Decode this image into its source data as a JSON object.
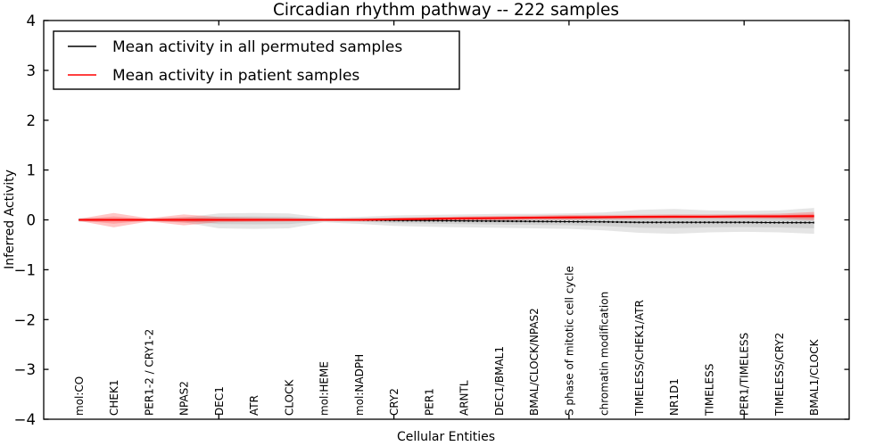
{
  "figure": {
    "background": "#ffffff"
  },
  "chart_data": {
    "type": "line",
    "title": "Circadian rhythm pathway -- 222 samples",
    "xlabel": "Cellular Entities",
    "ylabel": "Inferred Activity",
    "xlim": [
      0,
      23
    ],
    "ylim": [
      -4,
      4
    ],
    "grid": false,
    "yticks": [
      {
        "value": -4,
        "label": "−4"
      },
      {
        "value": -3,
        "label": "−3"
      },
      {
        "value": -2,
        "label": "−2"
      },
      {
        "value": -1,
        "label": "−1"
      },
      {
        "value": 0,
        "label": "0"
      },
      {
        "value": 1,
        "label": "1"
      },
      {
        "value": 2,
        "label": "2"
      },
      {
        "value": 3,
        "label": "3"
      },
      {
        "value": 4,
        "label": "4"
      }
    ],
    "xtick_positions": [
      5,
      10,
      15,
      20
    ],
    "categories": [
      "mol:CO",
      "CHEK1",
      "PER1-2 / CRY1-2",
      "NPAS2",
      "DEC1",
      "ATR",
      "CLOCK",
      "mol:HEME",
      "mol:NADPH",
      "CRY2",
      "PER1",
      "ARNTL",
      "DEC1/BMAL1",
      "BMAL/CLOCK/NPAS2",
      "S phase of mitotic cell cycle",
      "chromatin modification",
      "TIMELESS/CHEK1/ATR",
      "NR1D1",
      "TIMELESS",
      "PER1/TIMELESS",
      "TIMELESS/CRY2",
      "BMAL1/CLOCK"
    ],
    "legend": {
      "position": "upper left",
      "entries": [
        {
          "label": "Mean activity in all permuted samples",
          "color": "#000000"
        },
        {
          "label": "Mean activity in patient samples",
          "color": "#ff0000"
        }
      ]
    },
    "series": [
      {
        "name": "Mean activity in all permuted samples",
        "color": "#000000",
        "values": [
          0,
          0,
          0,
          0,
          0,
          0,
          0,
          0,
          0,
          -0.01,
          -0.015,
          -0.02,
          -0.025,
          -0.03,
          -0.035,
          -0.04,
          -0.05,
          -0.05,
          -0.05,
          -0.05,
          -0.055,
          -0.055
        ]
      },
      {
        "name": "Mean activity in patient samples",
        "color": "#ff0000",
        "values": [
          0,
          0,
          0,
          0,
          0,
          0,
          0,
          0,
          0,
          0.01,
          0.02,
          0.03,
          0.035,
          0.045,
          0.05,
          0.055,
          0.06,
          0.065,
          0.065,
          0.07,
          0.07,
          0.075
        ]
      }
    ],
    "bands": [
      {
        "name": "permuted-spread",
        "color": "#000000",
        "opacity": 0.1,
        "upper": [
          0.04,
          0.03,
          0.03,
          0.05,
          0.13,
          0.14,
          0.13,
          0.045,
          0.06,
          0.09,
          0.1,
          0.11,
          0.12,
          0.12,
          0.13,
          0.15,
          0.2,
          0.22,
          0.19,
          0.18,
          0.19,
          0.24
        ],
        "lower": [
          -0.04,
          -0.03,
          -0.03,
          -0.05,
          -0.17,
          -0.18,
          -0.17,
          -0.05,
          -0.08,
          -0.12,
          -0.14,
          -0.15,
          -0.16,
          -0.17,
          -0.18,
          -0.21,
          -0.26,
          -0.28,
          -0.25,
          -0.24,
          -0.25,
          -0.28
        ]
      },
      {
        "name": "patient-spread",
        "color": "#ff0000",
        "opacity": 0.22,
        "upper": [
          0.02,
          0.14,
          0.03,
          0.11,
          0.06,
          0.05,
          0.04,
          0.02,
          0.03,
          0.045,
          0.055,
          0.07,
          0.08,
          0.09,
          0.1,
          0.1,
          0.105,
          0.11,
          0.11,
          0.115,
          0.125,
          0.16
        ],
        "lower": [
          -0.02,
          -0.15,
          -0.03,
          -0.11,
          -0.05,
          -0.04,
          -0.03,
          -0.02,
          -0.025,
          -0.02,
          -0.02,
          -0.015,
          -0.01,
          0.0,
          0.0,
          0.01,
          0.015,
          0.02,
          0.025,
          0.025,
          0.02,
          -0.005
        ]
      }
    ]
  }
}
